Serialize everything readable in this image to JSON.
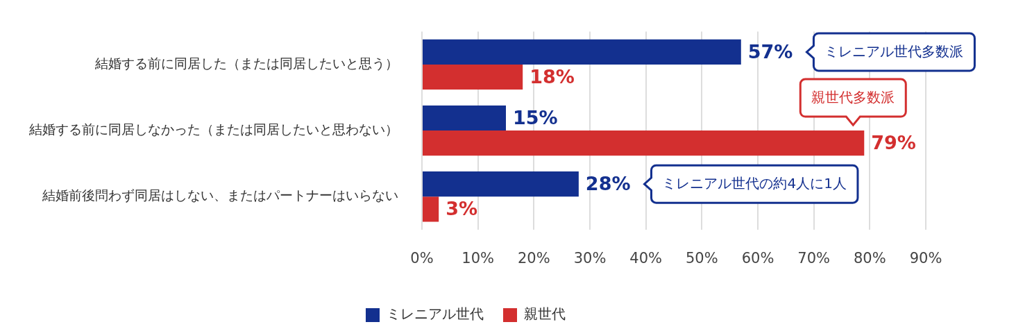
{
  "chart_data": {
    "type": "bar",
    "orientation": "horizontal",
    "categories": [
      "結婚する前に同居した（または同居したいと思う）",
      "結婚する前に同居しなかった（または同居したいと思わない）",
      "結婚前後問わず同居はしない、またはパートナーはいらない"
    ],
    "series": [
      {
        "name": "ミレニアル世代",
        "color": "#13308f",
        "values": [
          57,
          15,
          28
        ],
        "value_labels": [
          "57%",
          "15%",
          "28%"
        ]
      },
      {
        "name": "親世代",
        "color": "#d32f2f",
        "values": [
          18,
          79,
          3
        ],
        "value_labels": [
          "18%",
          "79%",
          "3%"
        ]
      }
    ],
    "xlim": [
      0,
      90
    ],
    "xticks": [
      {
        "value": 0,
        "label": "0%"
      },
      {
        "value": 10,
        "label": "10%"
      },
      {
        "value": 20,
        "label": "20%"
      },
      {
        "value": 30,
        "label": "30%"
      },
      {
        "value": 40,
        "label": "40%"
      },
      {
        "value": 50,
        "label": "50%"
      },
      {
        "value": 60,
        "label": "60%"
      },
      {
        "value": 70,
        "label": "70%"
      },
      {
        "value": 80,
        "label": "80%"
      },
      {
        "value": 90,
        "label": "90%"
      }
    ],
    "grid": "x",
    "legend": "bottom",
    "annotations": [
      "ミレニアル世代多数派",
      "親世代多数派",
      "ミレニアル世代の約4人に1人"
    ]
  }
}
